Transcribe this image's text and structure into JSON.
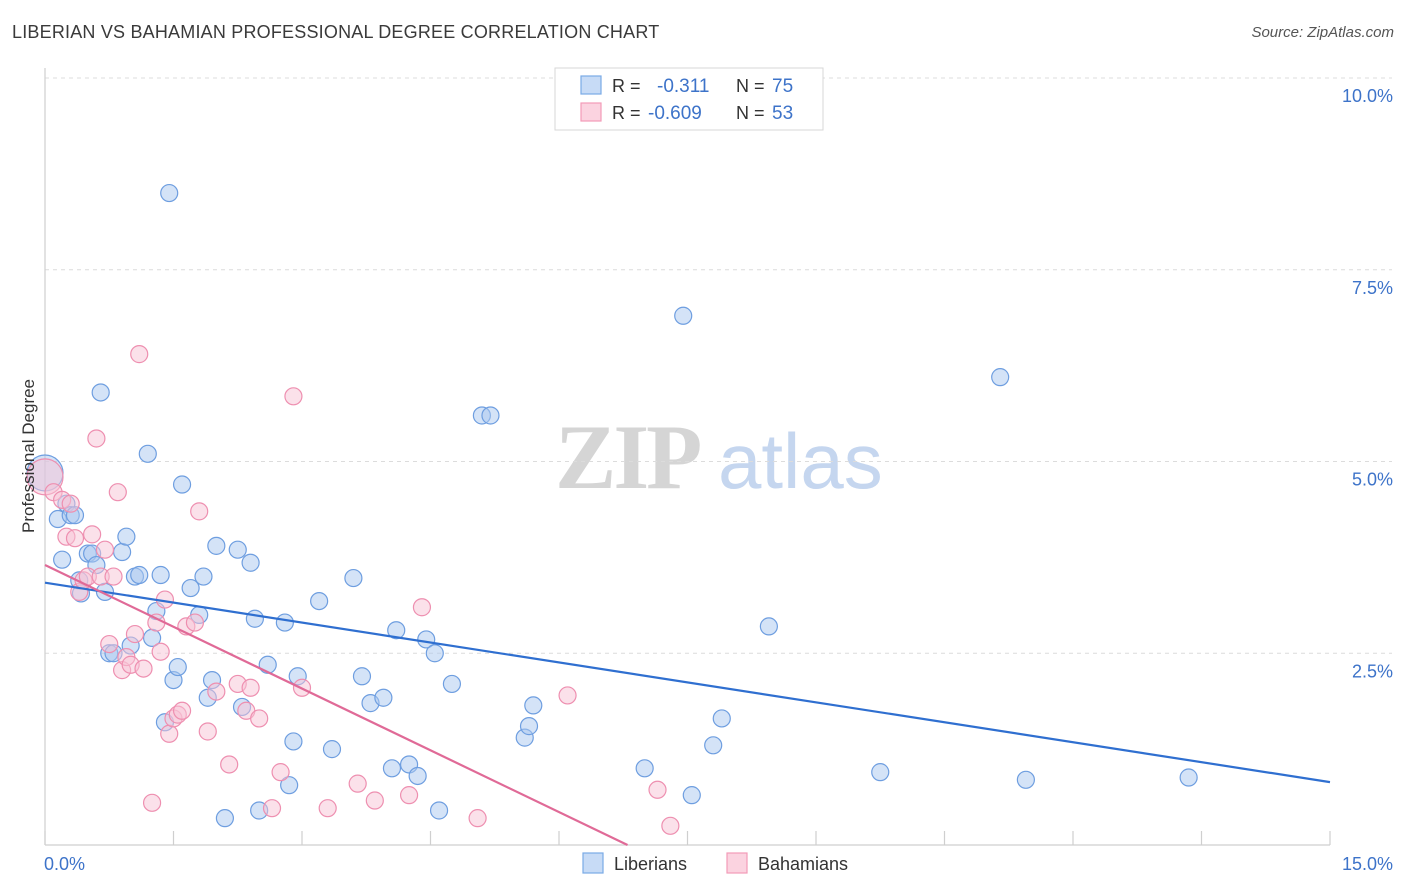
{
  "header": {
    "title": "LIBERIAN VS BAHAMIAN PROFESSIONAL DEGREE CORRELATION CHART",
    "source": "Source: ZipAtlas.com"
  },
  "watermark": {
    "zip": "ZIP",
    "atlas": "atlas"
  },
  "legend_box": {
    "rows": [
      {
        "r_label": "R =",
        "r_value": "-0.311",
        "n_label": "N =",
        "n_value": "75"
      },
      {
        "r_label": "R =",
        "r_value": "-0.609",
        "n_label": "N =",
        "n_value": "53"
      }
    ]
  },
  "bottom_legend": {
    "items": [
      "Liberians",
      "Bahamians"
    ]
  },
  "chart_data": {
    "type": "scatter",
    "title": "LIBERIAN VS BAHAMIAN PROFESSIONAL DEGREE CORRELATION CHART",
    "xlabel": "",
    "ylabel": "Professional Degree",
    "xlim": [
      0,
      15
    ],
    "ylim": [
      0,
      10
    ],
    "x_tick_labels": [
      "0.0%",
      "15.0%"
    ],
    "y_tick_labels": [
      "2.5%",
      "5.0%",
      "7.5%",
      "10.0%"
    ],
    "y_ticks": [
      2.5,
      5.0,
      7.5,
      10.0
    ],
    "grid": true,
    "legend_position": "bottom-center",
    "colors": {
      "liberians": "#7aaae6",
      "bahamians": "#f29bb8",
      "blue_line": "#2f6fd0",
      "pink_line": "#e06a97",
      "axis_text": "#3d73c9"
    },
    "series": [
      {
        "name": "Liberians",
        "r": -0.311,
        "n": 75,
        "trend": {
          "x": [
            0,
            15
          ],
          "y": [
            3.42,
            0.82
          ]
        },
        "points": [
          [
            0,
            4.85
          ],
          [
            0.15,
            4.25
          ],
          [
            0.2,
            3.72
          ],
          [
            0.25,
            4.45
          ],
          [
            0.3,
            4.3
          ],
          [
            0.35,
            4.3
          ],
          [
            0.4,
            3.45
          ],
          [
            0.42,
            3.28
          ],
          [
            0.5,
            3.8
          ],
          [
            0.55,
            3.8
          ],
          [
            0.6,
            3.65
          ],
          [
            0.65,
            5.9
          ],
          [
            0.7,
            3.3
          ],
          [
            0.75,
            2.5
          ],
          [
            0.8,
            2.5
          ],
          [
            0.9,
            3.82
          ],
          [
            0.95,
            4.02
          ],
          [
            1.0,
            2.6
          ],
          [
            1.05,
            3.5
          ],
          [
            1.1,
            3.52
          ],
          [
            1.2,
            5.1
          ],
          [
            1.25,
            2.7
          ],
          [
            1.3,
            3.05
          ],
          [
            1.35,
            3.52
          ],
          [
            1.4,
            1.6
          ],
          [
            1.45,
            8.5
          ],
          [
            1.5,
            2.15
          ],
          [
            1.55,
            2.32
          ],
          [
            1.6,
            4.7
          ],
          [
            1.7,
            3.35
          ],
          [
            1.8,
            3.0
          ],
          [
            1.85,
            3.5
          ],
          [
            1.9,
            1.92
          ],
          [
            1.95,
            2.15
          ],
          [
            2.0,
            3.9
          ],
          [
            2.1,
            0.35
          ],
          [
            2.25,
            3.85
          ],
          [
            2.3,
            1.8
          ],
          [
            2.4,
            3.68
          ],
          [
            2.45,
            2.95
          ],
          [
            2.5,
            0.45
          ],
          [
            2.6,
            2.35
          ],
          [
            2.8,
            2.9
          ],
          [
            2.85,
            0.78
          ],
          [
            2.9,
            1.35
          ],
          [
            2.95,
            2.2
          ],
          [
            3.2,
            3.18
          ],
          [
            3.35,
            1.25
          ],
          [
            3.6,
            3.48
          ],
          [
            3.7,
            2.2
          ],
          [
            3.8,
            1.85
          ],
          [
            3.95,
            1.92
          ],
          [
            4.05,
            1.0
          ],
          [
            4.1,
            2.8
          ],
          [
            4.25,
            1.05
          ],
          [
            4.35,
            0.9
          ],
          [
            4.45,
            2.68
          ],
          [
            4.55,
            2.5
          ],
          [
            4.6,
            0.45
          ],
          [
            4.75,
            2.1
          ],
          [
            5.1,
            5.6
          ],
          [
            5.2,
            5.6
          ],
          [
            5.6,
            1.4
          ],
          [
            5.65,
            1.55
          ],
          [
            5.7,
            1.82
          ],
          [
            7.0,
            1.0
          ],
          [
            7.45,
            6.9
          ],
          [
            7.55,
            0.65
          ],
          [
            7.8,
            1.3
          ],
          [
            7.9,
            1.65
          ],
          [
            8.45,
            2.85
          ],
          [
            9.75,
            0.95
          ],
          [
            11.15,
            6.1
          ],
          [
            11.45,
            0.85
          ],
          [
            13.35,
            0.88
          ]
        ]
      },
      {
        "name": "Bahamians",
        "r": -0.609,
        "n": 53,
        "trend": {
          "x": [
            0,
            6.8
          ],
          "y": [
            3.65,
            0
          ]
        },
        "points": [
          [
            0,
            4.8
          ],
          [
            0.1,
            4.6
          ],
          [
            0.2,
            4.5
          ],
          [
            0.25,
            4.02
          ],
          [
            0.3,
            4.45
          ],
          [
            0.35,
            4.0
          ],
          [
            0.4,
            3.3
          ],
          [
            0.45,
            3.45
          ],
          [
            0.5,
            3.5
          ],
          [
            0.55,
            4.05
          ],
          [
            0.6,
            5.3
          ],
          [
            0.65,
            3.5
          ],
          [
            0.7,
            3.85
          ],
          [
            0.75,
            2.62
          ],
          [
            0.8,
            3.5
          ],
          [
            0.85,
            4.6
          ],
          [
            0.9,
            2.28
          ],
          [
            0.95,
            2.45
          ],
          [
            1.0,
            2.35
          ],
          [
            1.05,
            2.75
          ],
          [
            1.1,
            6.4
          ],
          [
            1.15,
            2.3
          ],
          [
            1.25,
            0.55
          ],
          [
            1.3,
            2.9
          ],
          [
            1.35,
            2.52
          ],
          [
            1.4,
            3.2
          ],
          [
            1.45,
            1.45
          ],
          [
            1.5,
            1.65
          ],
          [
            1.55,
            1.7
          ],
          [
            1.6,
            1.75
          ],
          [
            1.65,
            2.85
          ],
          [
            1.75,
            2.9
          ],
          [
            1.8,
            4.35
          ],
          [
            1.9,
            1.48
          ],
          [
            2.0,
            2.0
          ],
          [
            2.15,
            1.05
          ],
          [
            2.25,
            2.1
          ],
          [
            2.35,
            1.75
          ],
          [
            2.4,
            2.05
          ],
          [
            2.5,
            1.65
          ],
          [
            2.65,
            0.48
          ],
          [
            2.75,
            0.95
          ],
          [
            2.9,
            5.85
          ],
          [
            3.0,
            2.05
          ],
          [
            3.3,
            0.48
          ],
          [
            3.65,
            0.8
          ],
          [
            3.85,
            0.58
          ],
          [
            4.25,
            0.65
          ],
          [
            4.4,
            3.1
          ],
          [
            5.05,
            0.35
          ],
          [
            6.1,
            1.95
          ],
          [
            7.15,
            0.72
          ],
          [
            7.3,
            0.25
          ]
        ]
      }
    ]
  }
}
